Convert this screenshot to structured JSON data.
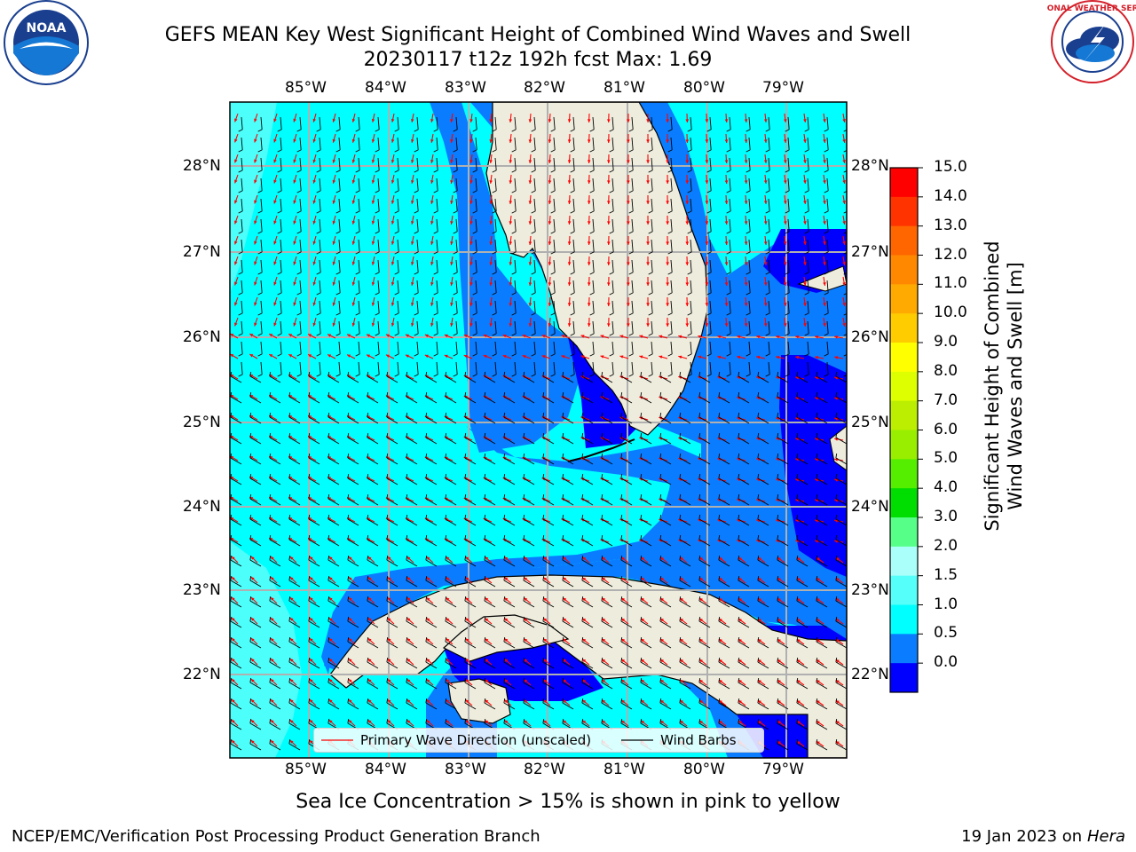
{
  "header": {
    "title_line1": "GEFS MEAN Key West Significant Height of Combined Wind Waves and Swell",
    "title_line2": "20230117 t12z 192h fcst   Max: 1.69"
  },
  "logos": {
    "noaa": {
      "text": "NOAA",
      "ring_text": "NATIONAL OCEANIC AND ATMOSPHERIC ADMINISTRATION · U.S. DEPARTMENT OF COMMERCE"
    },
    "nws": {
      "ring_text": "NATIONAL WEATHER SERVICE"
    }
  },
  "map": {
    "lon_ticks": [
      "85°W",
      "84°W",
      "83°W",
      "82°W",
      "81°W",
      "80°W",
      "79°W"
    ],
    "lat_ticks": [
      "28°N",
      "27°N",
      "26°N",
      "25°N",
      "24°N",
      "23°N",
      "22°N"
    ],
    "colors": {
      "land": "#eeeddd",
      "wave_0_0p5": "#0000ff",
      "wave_0p5_1": "#0a7cff",
      "wave_1_1p5": "#00ffff",
      "wave_1p5_2": "#4dfffb",
      "grid": "#b0b0b0",
      "wave_arrow": "#ff0000",
      "wind_barb": "#000000"
    }
  },
  "legend": {
    "wave_direction": "Primary Wave Direction (unscaled)",
    "wind_barbs": "Wind Barbs"
  },
  "colorbar": {
    "label_line1": "Significant Height of Combined",
    "label_line2": "Wind Waves and Swell [m]",
    "ticks": [
      "15.0",
      "14.0",
      "13.0",
      "12.0",
      "11.0",
      "10.0",
      "9.0",
      "8.0",
      "7.0",
      "6.0",
      "5.0",
      "4.0",
      "3.0",
      "2.0",
      "1.5",
      "1.0",
      "0.5",
      "0.0"
    ],
    "colors": [
      "#ff0000",
      "#ff3300",
      "#ff6600",
      "#ff8800",
      "#ffaa00",
      "#ffcc00",
      "#ffff00",
      "#ddff00",
      "#bbee00",
      "#99ee00",
      "#55ee00",
      "#00dd00",
      "#55ff88",
      "#aafffa",
      "#55fffa",
      "#00ffff",
      "#0a7cff",
      "#0000ff"
    ]
  },
  "note": "Sea Ice Concentration > 15% is shown in pink to yellow",
  "footer": {
    "left": "NCEP/EMC/Verification Post Processing Product Generation Branch",
    "right_date": "19 Jan 2023 on ",
    "right_host": "Hera"
  }
}
